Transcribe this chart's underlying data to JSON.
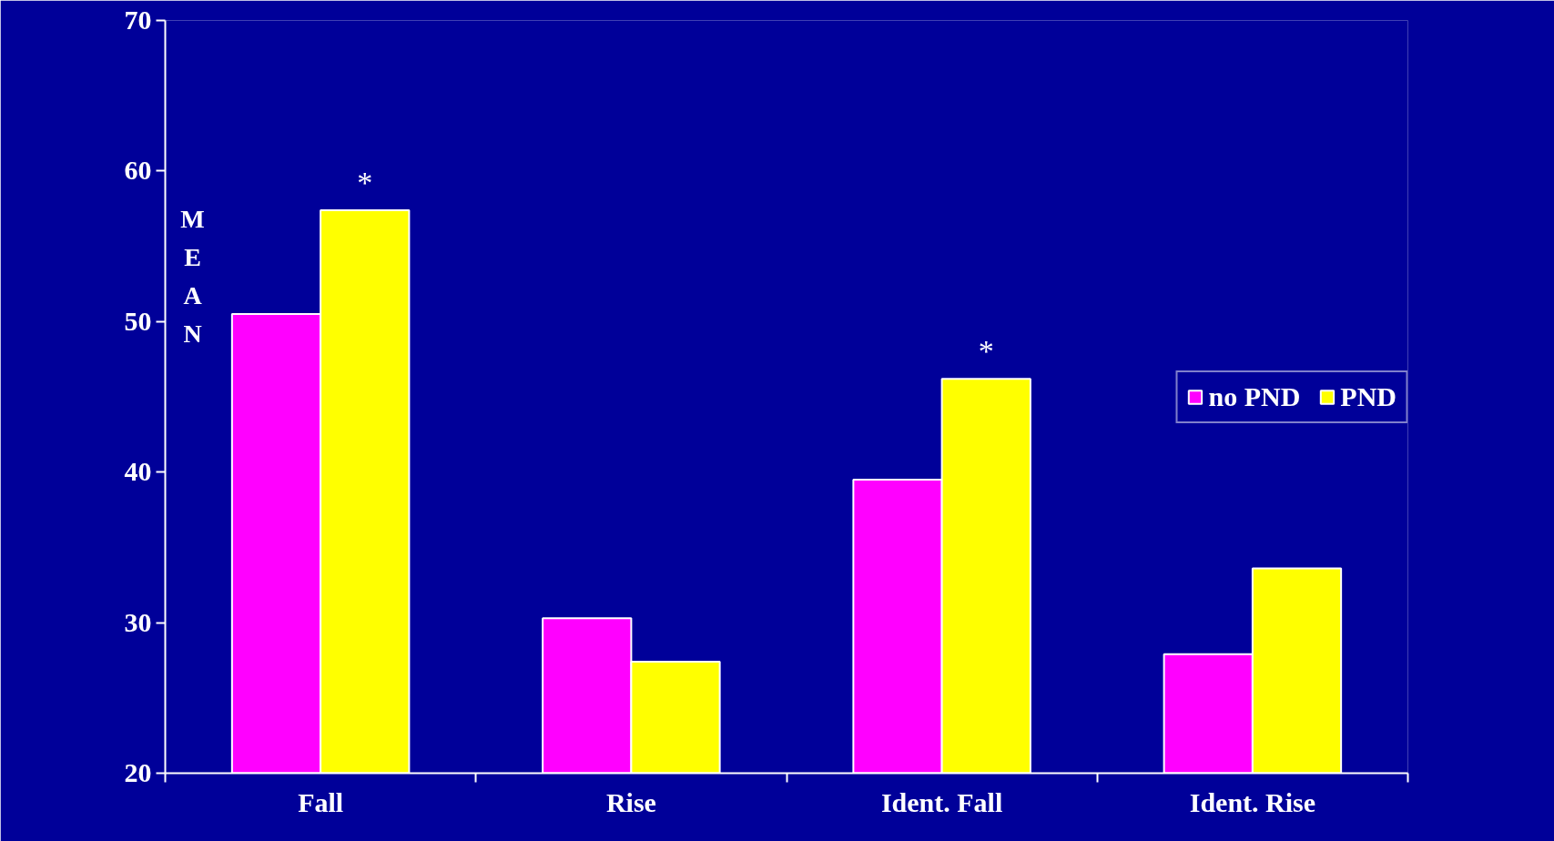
{
  "chart_data": {
    "type": "bar",
    "ylabel": "MEAN",
    "categories": [
      "Fall",
      "Rise",
      "Ident. Fall",
      "Ident. Rise"
    ],
    "series": [
      {
        "name": "no PND",
        "color": "#ff00ff",
        "values": [
          50.5,
          30.3,
          39.5,
          27.9
        ]
      },
      {
        "name": "PND",
        "color": "#ffff00",
        "values": [
          57.4,
          27.4,
          46.2,
          33.6
        ]
      }
    ],
    "ylim": [
      20,
      70
    ],
    "yticks": [
      20,
      30,
      40,
      50,
      60,
      70
    ],
    "grid": false,
    "legend": "right",
    "annotations": [
      {
        "text": "*",
        "x": "Fall",
        "y": 57.4
      },
      {
        "text": "*",
        "x": "Ident. Fall",
        "y": 46.2
      }
    ]
  }
}
